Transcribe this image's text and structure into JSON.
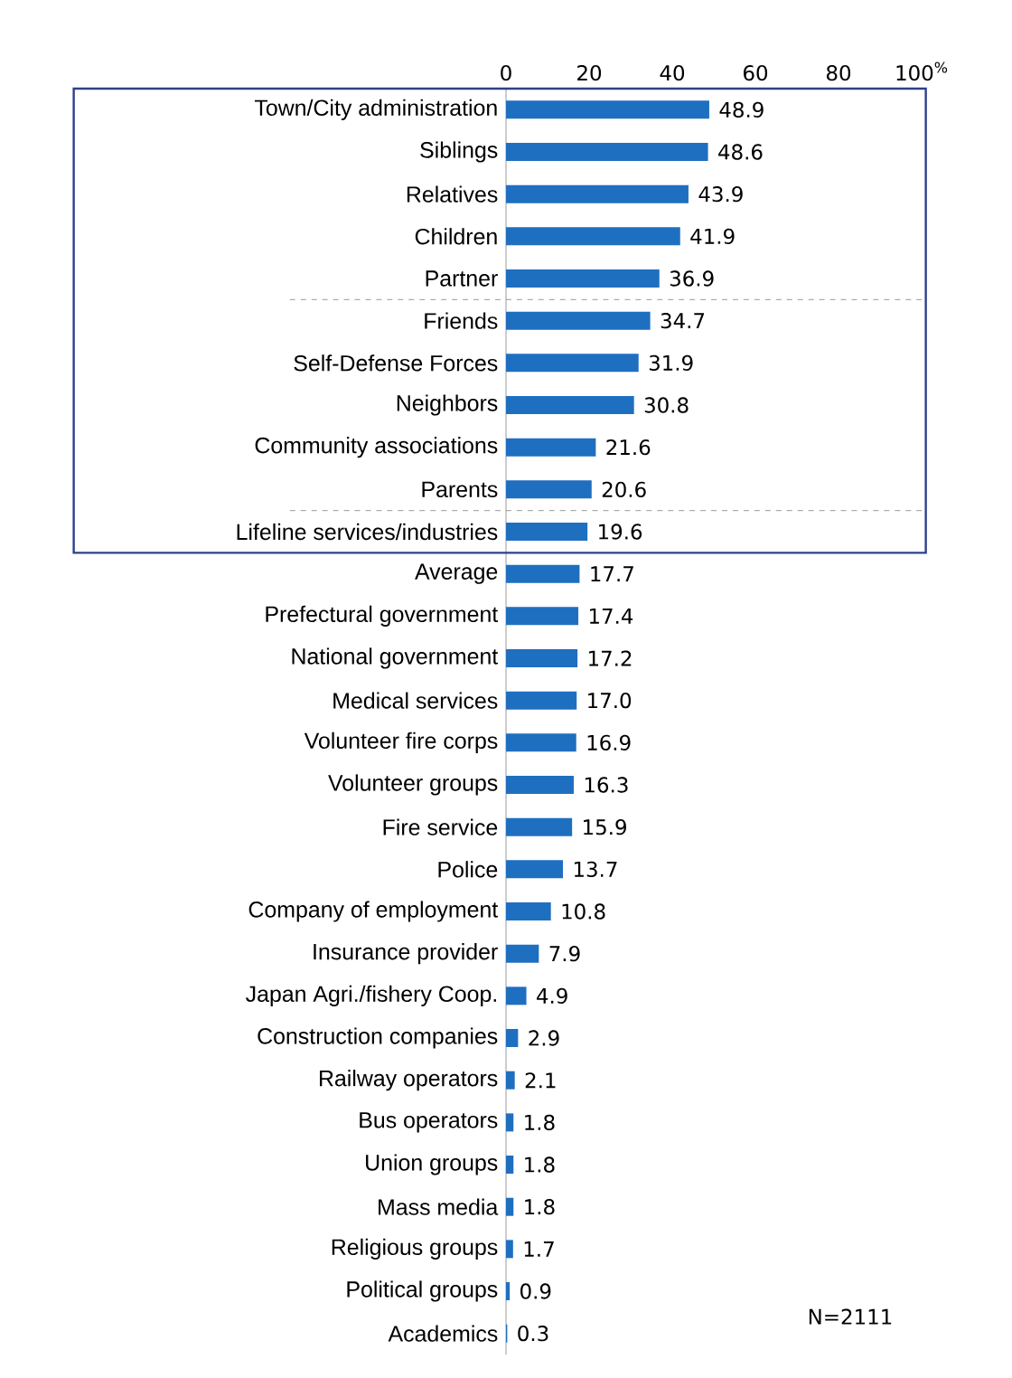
{
  "chart_data": {
    "type": "bar",
    "orientation": "horizontal",
    "color": "#1f6fc0",
    "categories": [
      "Town/City administration",
      "Siblings",
      "Relatives",
      "Children",
      "Partner",
      "Friends",
      "Self-Defense Forces",
      "Neighbors",
      "Community associations",
      "Parents",
      "Lifeline services/industries",
      "Average",
      "Prefectural government",
      "National government",
      "Medical services",
      "Volunteer fire corps",
      "Volunteer groups",
      "Fire service",
      "Police",
      "Company of employment",
      "Insurance provider",
      "Japan Agri./fishery Coop.",
      "Construction companies",
      "Railway operators",
      "Bus operators",
      "Union groups",
      "Mass media",
      "Religious groups",
      "Political groups",
      "Academics"
    ],
    "values": [
      48.9,
      48.6,
      43.9,
      41.9,
      36.9,
      34.7,
      31.9,
      30.8,
      21.6,
      20.6,
      19.6,
      17.7,
      17.4,
      17.2,
      17.0,
      16.9,
      16.3,
      15.9,
      13.7,
      10.8,
      7.9,
      4.9,
      2.9,
      2.1,
      1.8,
      1.8,
      1.8,
      1.7,
      0.9,
      0.3
    ],
    "value_labels": [
      "48.9",
      "48.6",
      "43.9",
      "41.9",
      "36.9",
      "34.7",
      "31.9",
      "30.8",
      "21.6",
      "20.6",
      "19.6",
      "17.7",
      "17.4",
      "17.2",
      "17.0",
      "16.9",
      "16.3",
      "15.9",
      "13.7",
      "10.8",
      "7.9",
      "4.9",
      "2.9",
      "2.1",
      "1.8",
      "1.8",
      "1.8",
      "1.7",
      "0.9",
      "0.3"
    ],
    "xlim": [
      0,
      100
    ],
    "xticks": [
      0,
      20,
      40,
      60,
      80,
      {
        "value": 100,
        "label": "100$^{%}$"
      }
    ],
    "annotations": [
      "N=2111"
    ]
  }
}
